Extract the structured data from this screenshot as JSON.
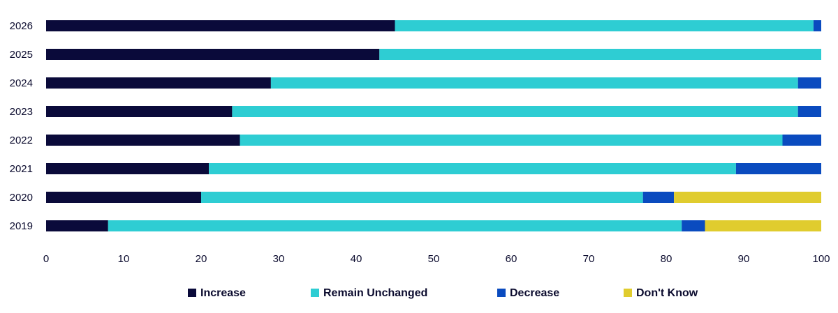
{
  "chart_data": {
    "type": "bar",
    "orientation": "horizontal",
    "stacked": true,
    "title": "",
    "xlabel": "",
    "ylabel": "",
    "xlim": [
      0,
      100
    ],
    "x_ticks": [
      0,
      10,
      20,
      30,
      40,
      50,
      60,
      70,
      80,
      90,
      100
    ],
    "grid": false,
    "legend_position": "bottom",
    "categories": [
      "2026",
      "2025",
      "2024",
      "2023",
      "2022",
      "2021",
      "2020",
      "2019"
    ],
    "series": [
      {
        "name": "Increase",
        "color": "#0a0a3a",
        "values": [
          45,
          43,
          29,
          24,
          25,
          21,
          20,
          8
        ]
      },
      {
        "name": "Remain Unchanged",
        "color": "#2ecdd3",
        "values": [
          54,
          57,
          68,
          73,
          70,
          68,
          57,
          74
        ]
      },
      {
        "name": "Decrease",
        "color": "#0a4bbf",
        "values": [
          1,
          0,
          3,
          3,
          5,
          11,
          4,
          3
        ]
      },
      {
        "name": "Don't Know",
        "color": "#e0cc2e",
        "values": [
          0,
          0,
          0,
          0,
          0,
          0,
          19,
          15
        ]
      }
    ]
  }
}
